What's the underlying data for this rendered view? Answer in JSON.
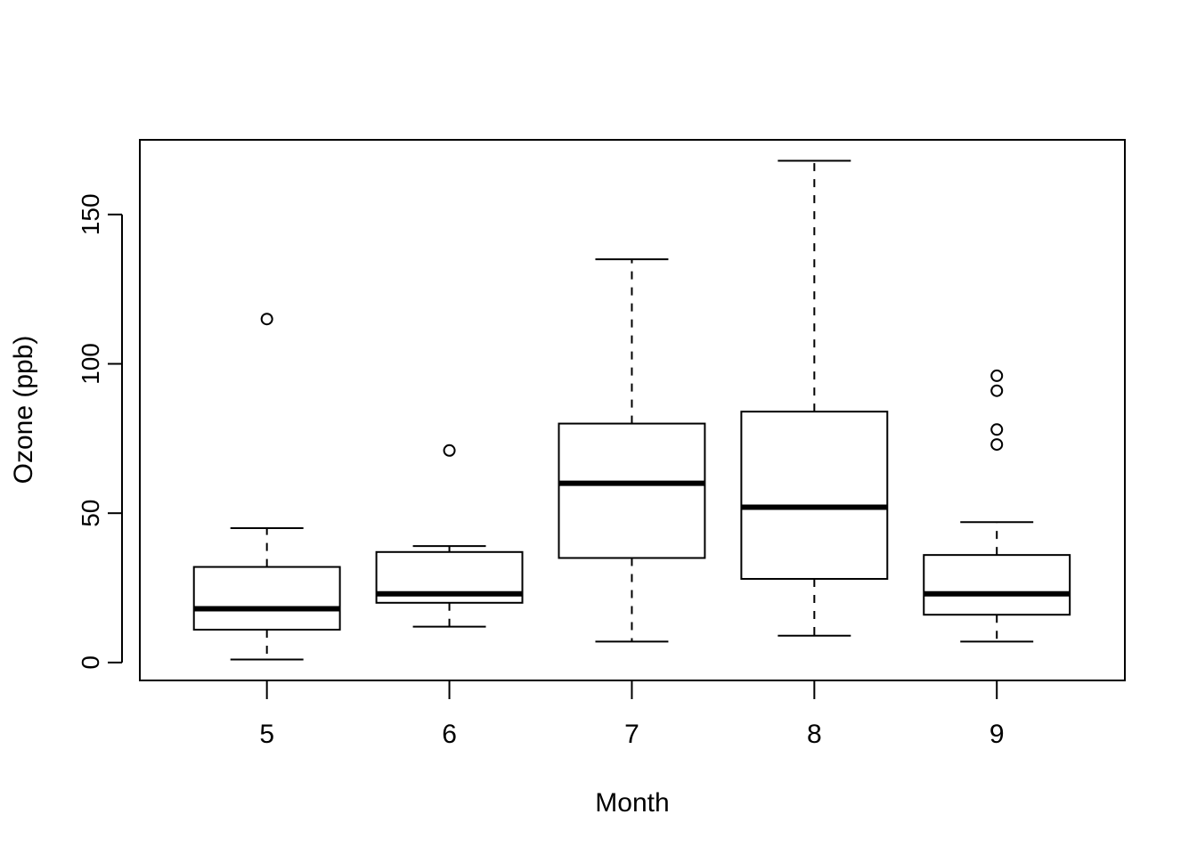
{
  "chart_data": {
    "type": "boxplot",
    "title": "",
    "xlabel": "Month",
    "ylabel": "Ozone (ppb)",
    "ylim": [
      -6,
      175
    ],
    "yticks": [
      0,
      50,
      100,
      150
    ],
    "ytick_labels": [
      "0",
      "50",
      "100",
      "150"
    ],
    "grid": false,
    "categories": [
      "5",
      "6",
      "7",
      "8",
      "9"
    ],
    "boxes": [
      {
        "category": "5",
        "whisker_low": 1,
        "q1": 11,
        "median": 18,
        "q3": 32,
        "whisker_high": 45,
        "outliers": [
          115
        ]
      },
      {
        "category": "6",
        "whisker_low": 12,
        "q1": 20,
        "median": 23,
        "q3": 37,
        "whisker_high": 39,
        "outliers": [
          71
        ]
      },
      {
        "category": "7",
        "whisker_low": 7,
        "q1": 35,
        "median": 60,
        "q3": 80,
        "whisker_high": 135,
        "outliers": []
      },
      {
        "category": "8",
        "whisker_low": 9,
        "q1": 28,
        "median": 52,
        "q3": 84,
        "whisker_high": 168,
        "outliers": []
      },
      {
        "category": "9",
        "whisker_low": 7,
        "q1": 16,
        "median": 23,
        "q3": 36,
        "whisker_high": 47,
        "outliers": [
          73,
          78,
          91,
          96
        ]
      }
    ]
  }
}
